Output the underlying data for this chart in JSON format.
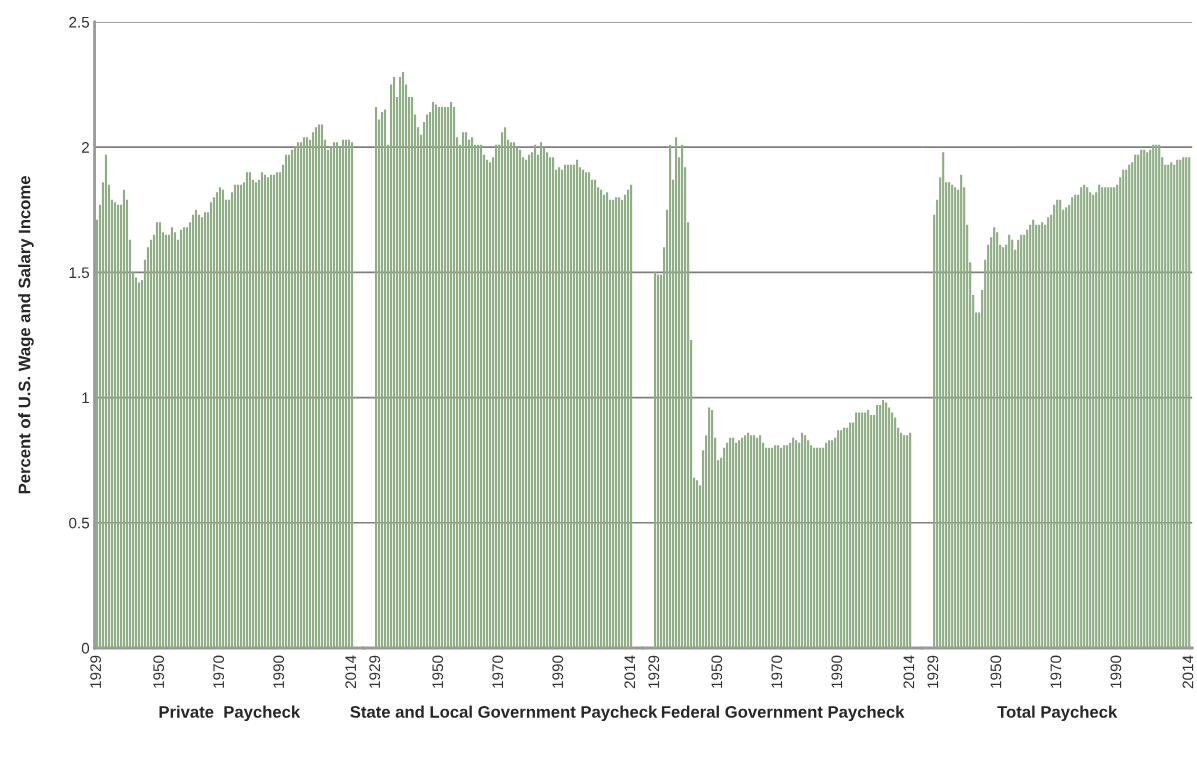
{
  "chart_data": [
    {
      "type": "bar",
      "xlabel": "Private  Paycheck",
      "ylabel": "Percent of U.S. Wage and Salary Income",
      "color": "#8fae86",
      "ylim": [
        0,
        2.5
      ],
      "yticks": [
        0,
        0.5,
        1,
        1.5,
        2,
        2.5
      ],
      "grid": "y",
      "categories": [
        "1929",
        null,
        null,
        null,
        null,
        null,
        null,
        null,
        null,
        null,
        null,
        null,
        null,
        null,
        null,
        null,
        null,
        null,
        null,
        null,
        null,
        "1950",
        null,
        null,
        null,
        null,
        null,
        null,
        null,
        null,
        null,
        null,
        null,
        null,
        null,
        null,
        null,
        null,
        null,
        null,
        null,
        "1970",
        null,
        null,
        null,
        null,
        null,
        null,
        null,
        null,
        null,
        null,
        null,
        null,
        null,
        null,
        null,
        null,
        null,
        null,
        null,
        "1990",
        null,
        null,
        null,
        null,
        null,
        null,
        null,
        null,
        null,
        null,
        null,
        null,
        null,
        null,
        null,
        null,
        null,
        null,
        null,
        null,
        null,
        null,
        null,
        "2014"
      ],
      "values": [
        1.71,
        1.77,
        1.86,
        1.97,
        1.85,
        1.79,
        1.78,
        1.77,
        1.77,
        1.83,
        1.79,
        1.63,
        1.5,
        1.48,
        1.46,
        1.47,
        1.55,
        1.6,
        1.63,
        1.65,
        1.7,
        1.7,
        1.66,
        1.65,
        1.65,
        1.68,
        1.66,
        1.63,
        1.67,
        1.68,
        1.68,
        1.7,
        1.73,
        1.75,
        1.73,
        1.72,
        1.74,
        1.74,
        1.78,
        1.8,
        1.82,
        1.84,
        1.83,
        1.79,
        1.79,
        1.82,
        1.85,
        1.85,
        1.85,
        1.86,
        1.9,
        1.9,
        1.87,
        1.86,
        1.87,
        1.9,
        1.89,
        1.88,
        1.89,
        1.89,
        1.9,
        1.9,
        1.93,
        1.97,
        1.97,
        1.99,
        2.0,
        2.02,
        2.02,
        2.04,
        2.04,
        2.03,
        2.06,
        2.08,
        2.09,
        2.09,
        2.03,
        1.99,
        2.0,
        2.02,
        2.02,
        2.0,
        2.03,
        2.03,
        2.03,
        2.02
      ]
    },
    {
      "type": "bar",
      "xlabel": "State and Local Government Paycheck",
      "color": "#8fae86",
      "ylim": [
        0,
        2.5
      ],
      "yticks": [
        0,
        0.5,
        1,
        1.5,
        2,
        2.5
      ],
      "grid": "y",
      "tick_labels": "x",
      "categories": [
        "1929",
        null,
        null,
        null,
        null,
        null,
        null,
        null,
        null,
        null,
        null,
        null,
        null,
        null,
        null,
        null,
        null,
        null,
        null,
        null,
        null,
        "1950",
        null,
        null,
        null,
        null,
        null,
        null,
        null,
        null,
        null,
        null,
        null,
        null,
        null,
        null,
        null,
        null,
        null,
        null,
        null,
        "1970",
        null,
        null,
        null,
        null,
        null,
        null,
        null,
        null,
        null,
        null,
        null,
        null,
        null,
        null,
        null,
        null,
        null,
        null,
        null,
        "1990",
        null,
        null,
        null,
        null,
        null,
        null,
        null,
        null,
        null,
        null,
        null,
        null,
        null,
        null,
        null,
        null,
        null,
        null,
        null,
        null,
        null,
        null,
        null,
        "2014"
      ],
      "values": [
        2.16,
        2.11,
        2.14,
        2.15,
        2.01,
        2.25,
        2.28,
        2.2,
        2.28,
        2.3,
        2.25,
        2.2,
        2.2,
        2.13,
        2.08,
        2.05,
        2.1,
        2.13,
        2.14,
        2.18,
        2.17,
        2.16,
        2.16,
        2.16,
        2.16,
        2.18,
        2.16,
        2.04,
        2.01,
        2.06,
        2.06,
        2.03,
        2.04,
        2.01,
        2.01,
        2.01,
        1.97,
        1.95,
        1.94,
        1.96,
        2.01,
        2.01,
        2.06,
        2.08,
        2.03,
        2.02,
        2.02,
        2.0,
        1.99,
        1.96,
        1.95,
        1.97,
        1.98,
        2.01,
        1.97,
        2.02,
        2.0,
        1.98,
        1.96,
        1.96,
        1.91,
        1.92,
        1.91,
        1.93,
        1.93,
        1.93,
        1.93,
        1.95,
        1.92,
        1.91,
        1.9,
        1.9,
        1.87,
        1.87,
        1.84,
        1.83,
        1.81,
        1.82,
        1.79,
        1.79,
        1.8,
        1.8,
        1.79,
        1.81,
        1.83,
        1.85
      ]
    },
    {
      "type": "bar",
      "xlabel": "Federal Government Paycheck",
      "color": "#8fae86",
      "ylim": [
        0,
        2.5
      ],
      "yticks": [
        0,
        0.5,
        1,
        1.5,
        2,
        2.5
      ],
      "grid": "y",
      "tick_labels": "x",
      "categories": [
        "1929",
        null,
        null,
        null,
        null,
        null,
        null,
        null,
        null,
        null,
        null,
        null,
        null,
        null,
        null,
        null,
        null,
        null,
        null,
        null,
        null,
        "1950",
        null,
        null,
        null,
        null,
        null,
        null,
        null,
        null,
        null,
        null,
        null,
        null,
        null,
        null,
        null,
        null,
        null,
        null,
        null,
        "1970",
        null,
        null,
        null,
        null,
        null,
        null,
        null,
        null,
        null,
        null,
        null,
        null,
        null,
        null,
        null,
        null,
        null,
        null,
        null,
        "1990",
        null,
        null,
        null,
        null,
        null,
        null,
        null,
        null,
        null,
        null,
        null,
        null,
        null,
        null,
        null,
        null,
        null,
        null,
        null,
        null,
        null,
        null,
        null,
        "2014"
      ],
      "values": [
        1.5,
        1.49,
        1.49,
        1.6,
        1.75,
        2.01,
        1.87,
        2.04,
        1.96,
        2.01,
        1.92,
        1.7,
        1.23,
        0.68,
        0.67,
        0.65,
        0.79,
        0.85,
        0.96,
        0.95,
        0.84,
        0.75,
        0.76,
        0.8,
        0.82,
        0.84,
        0.84,
        0.82,
        0.83,
        0.84,
        0.85,
        0.86,
        0.85,
        0.85,
        0.84,
        0.85,
        0.82,
        0.8,
        0.8,
        0.8,
        0.81,
        0.81,
        0.8,
        0.81,
        0.81,
        0.82,
        0.84,
        0.83,
        0.82,
        0.86,
        0.85,
        0.83,
        0.81,
        0.8,
        0.8,
        0.8,
        0.8,
        0.82,
        0.83,
        0.83,
        0.84,
        0.87,
        0.87,
        0.88,
        0.88,
        0.9,
        0.9,
        0.94,
        0.94,
        0.94,
        0.94,
        0.95,
        0.93,
        0.93,
        0.97,
        0.97,
        0.99,
        0.98,
        0.96,
        0.94,
        0.92,
        0.88,
        0.86,
        0.85,
        0.85,
        0.86
      ]
    },
    {
      "type": "bar",
      "xlabel": "Total Paycheck",
      "color": "#8fae86",
      "ylim": [
        0,
        2.5
      ],
      "yticks": [
        0,
        0.5,
        1,
        1.5,
        2,
        2.5
      ],
      "grid": "y",
      "tick_labels": "x",
      "categories": [
        "1929",
        null,
        null,
        null,
        null,
        null,
        null,
        null,
        null,
        null,
        null,
        null,
        null,
        null,
        null,
        null,
        null,
        null,
        null,
        null,
        null,
        "1950",
        null,
        null,
        null,
        null,
        null,
        null,
        null,
        null,
        null,
        null,
        null,
        null,
        null,
        null,
        null,
        null,
        null,
        null,
        null,
        "1970",
        null,
        null,
        null,
        null,
        null,
        null,
        null,
        null,
        null,
        null,
        null,
        null,
        null,
        null,
        null,
        null,
        null,
        null,
        null,
        "1990",
        null,
        null,
        null,
        null,
        null,
        null,
        null,
        null,
        null,
        null,
        null,
        null,
        null,
        null,
        null,
        null,
        null,
        null,
        null,
        null,
        null,
        null,
        null,
        "2014"
      ],
      "values": [
        1.73,
        1.79,
        1.88,
        1.98,
        1.86,
        1.86,
        1.85,
        1.84,
        1.83,
        1.89,
        1.84,
        1.69,
        1.54,
        1.41,
        1.34,
        1.34,
        1.43,
        1.55,
        1.61,
        1.64,
        1.68,
        1.66,
        1.61,
        1.6,
        1.61,
        1.65,
        1.63,
        1.59,
        1.63,
        1.65,
        1.65,
        1.67,
        1.69,
        1.71,
        1.69,
        1.69,
        1.7,
        1.69,
        1.72,
        1.73,
        1.77,
        1.79,
        1.79,
        1.75,
        1.76,
        1.77,
        1.8,
        1.81,
        1.81,
        1.84,
        1.85,
        1.84,
        1.82,
        1.81,
        1.82,
        1.85,
        1.84,
        1.84,
        1.84,
        1.84,
        1.84,
        1.85,
        1.88,
        1.91,
        1.91,
        1.93,
        1.94,
        1.97,
        1.97,
        1.99,
        1.99,
        1.98,
        1.99,
        2.01,
        2.01,
        2.01,
        1.96,
        1.93,
        1.93,
        1.94,
        1.93,
        1.95,
        1.95,
        1.96,
        1.96,
        1.96
      ]
    }
  ]
}
